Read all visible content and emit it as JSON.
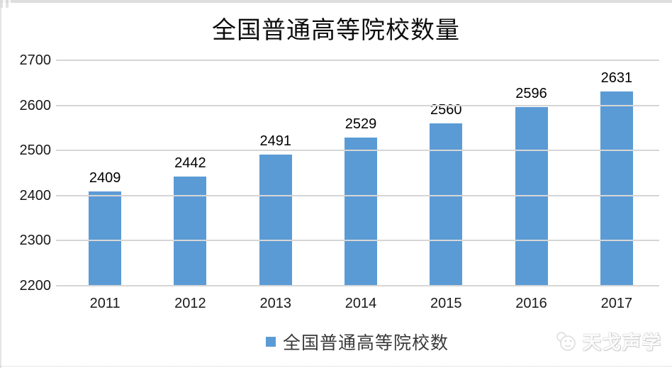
{
  "page": {
    "background_color": "#ffffff",
    "border_color": "#dedede"
  },
  "chart_data": {
    "type": "bar",
    "title": "全国普通高等院校数量",
    "categories": [
      "2011",
      "2012",
      "2013",
      "2014",
      "2015",
      "2016",
      "2017"
    ],
    "series": [
      {
        "name": "全国普通高等院校数",
        "values": [
          2409,
          2442,
          2491,
          2529,
          2560,
          2596,
          2631
        ]
      }
    ],
    "xlabel": "",
    "ylabel": "",
    "ylim": [
      2200,
      2700
    ],
    "yticks": [
      2200,
      2300,
      2400,
      2500,
      2600,
      2700
    ],
    "grid": true,
    "gridline_color": "#d6d6d6",
    "bar_color": "#5B9BD5",
    "legend_position": "bottom",
    "data_labels_shown": true
  },
  "legend": {
    "marker_color": "#5B9BD5",
    "label": "全国普通高等院校数"
  },
  "watermark": {
    "text": "天戈声学"
  }
}
